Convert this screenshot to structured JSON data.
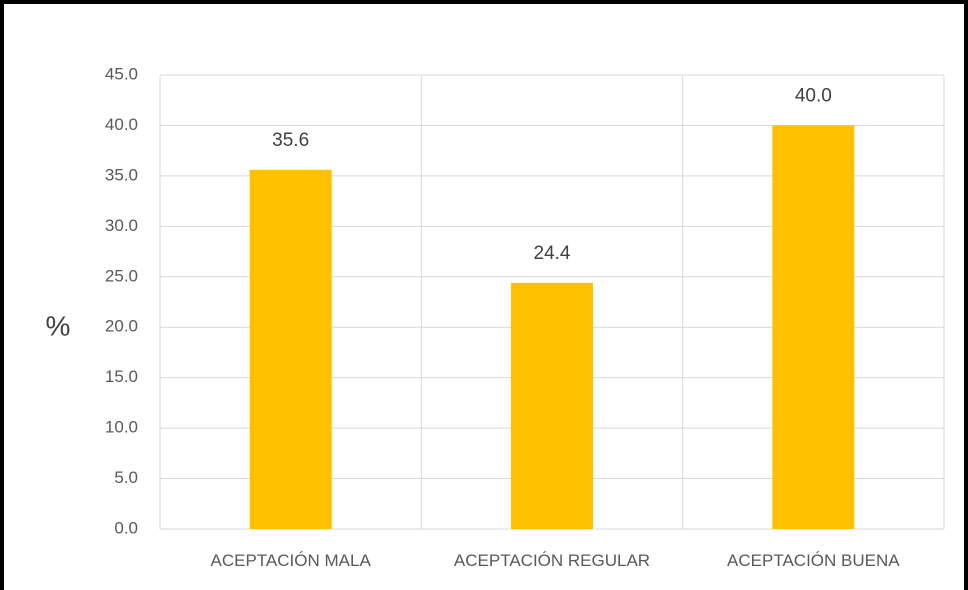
{
  "chart_data": {
    "type": "bar",
    "title": "",
    "xlabel": "",
    "ylabel": "%",
    "categories": [
      "ACEPTACIÓN MALA",
      "ACEPTACIÓN REGULAR",
      "ACEPTACIÓN BUENA"
    ],
    "values": [
      35.6,
      24.4,
      40.0
    ],
    "data_labels": [
      "35.6",
      "24.4",
      "40.0"
    ],
    "ylim": [
      0,
      45
    ],
    "yticks": [
      "0.0",
      "5.0",
      "10.0",
      "15.0",
      "20.0",
      "25.0",
      "30.0",
      "35.0",
      "40.0",
      "45.0"
    ],
    "grid": true,
    "legend": "none",
    "colors": {
      "bar": "#FFC000",
      "grid": "#D9D9D9",
      "text": "#595959",
      "frame": "#000000"
    }
  }
}
